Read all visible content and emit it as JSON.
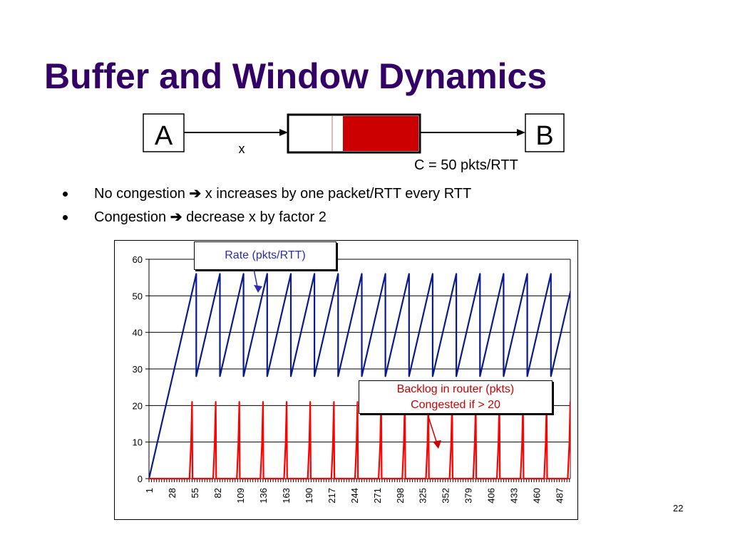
{
  "slide": {
    "title": "Buffer and Window Dynamics",
    "page_number": "22"
  },
  "diagram": {
    "source_label": "A",
    "dest_label": "B",
    "flow_label": "x",
    "capacity_label": "C = 50 pkts/RTT",
    "colors": {
      "queue_fill": "#cc0000"
    }
  },
  "bullets": [
    {
      "before": "No congestion ",
      "arrow": "➔",
      "after": " x increases by one packet/RTT every RTT"
    },
    {
      "before": "Congestion ",
      "arrow": "➔",
      "after": " decrease x by factor 2"
    }
  ],
  "annotations": {
    "rate": "Rate (pkts/RTT)",
    "backlog_line1": "Backlog in router (pkts)",
    "backlog_line2": "Congested if > 20"
  },
  "chart_data": {
    "type": "line",
    "title": "",
    "xlabel": "",
    "ylabel": "",
    "ylim": [
      0,
      60
    ],
    "xlim": [
      1,
      500
    ],
    "yticks": [
      0,
      10,
      20,
      30,
      40,
      50,
      60
    ],
    "xtick_labels": [
      "1",
      "28",
      "55",
      "82",
      "109",
      "136",
      "163",
      "190",
      "217",
      "244",
      "271",
      "298",
      "325",
      "352",
      "379",
      "406",
      "433",
      "460",
      "487"
    ],
    "grid": true,
    "series": [
      {
        "color": "#0a1a8a",
        "points": [
          [
            1,
            0
          ],
          [
            57,
            56
          ],
          [
            57,
            28
          ],
          [
            85,
            56
          ],
          [
            85,
            28
          ],
          [
            113,
            56
          ],
          [
            113,
            28
          ],
          [
            141,
            56
          ],
          [
            141,
            28
          ],
          [
            169,
            56
          ],
          [
            169,
            28
          ],
          [
            197,
            56
          ],
          [
            197,
            28
          ],
          [
            225,
            56
          ],
          [
            225,
            28
          ],
          [
            253,
            56
          ],
          [
            253,
            28
          ],
          [
            281,
            56
          ],
          [
            281,
            28
          ],
          [
            309,
            56
          ],
          [
            309,
            28
          ],
          [
            337,
            56
          ],
          [
            337,
            28
          ],
          [
            365,
            56
          ],
          [
            365,
            28
          ],
          [
            393,
            56
          ],
          [
            393,
            28
          ],
          [
            421,
            56
          ],
          [
            421,
            28
          ],
          [
            449,
            56
          ],
          [
            449,
            28
          ],
          [
            477,
            56
          ],
          [
            477,
            28
          ],
          [
            505,
            56
          ],
          [
            505,
            28
          ],
          [
            513,
            36
          ]
        ]
      },
      {
        "color": "#ff0000",
        "baseline": 0,
        "peak": 21,
        "peak_x": [
          52,
          80,
          108,
          136,
          164,
          192,
          220,
          248,
          276,
          304,
          332,
          360,
          388,
          416,
          444,
          472,
          500
        ]
      }
    ]
  }
}
